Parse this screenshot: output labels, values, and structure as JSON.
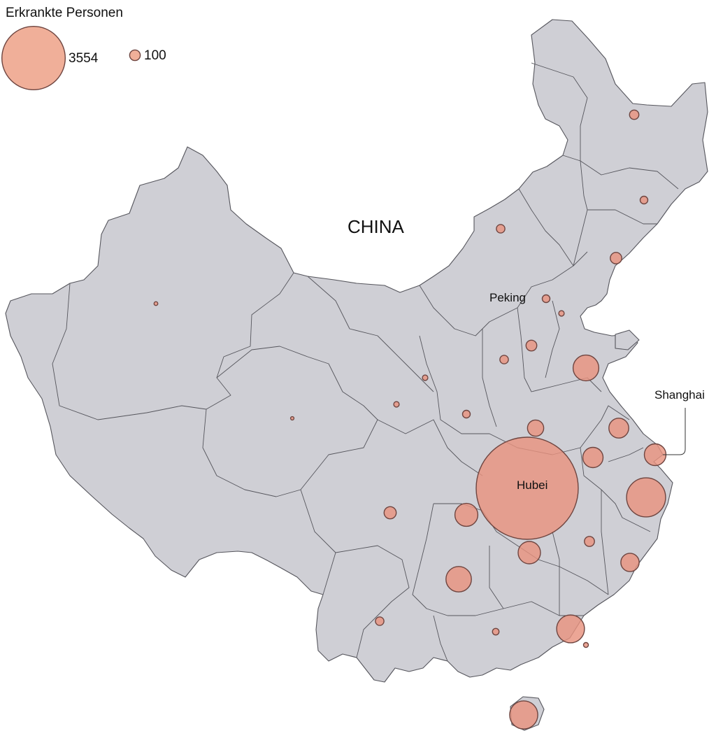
{
  "legend": {
    "title": "Erkrankte Personen",
    "max_value": 3554,
    "max_label": "3554",
    "min_value": 100,
    "min_label": "100"
  },
  "labels": {
    "country": "CHINA",
    "capital": "Peking",
    "city": "Shanghai",
    "epicenter": "Hubei"
  },
  "colors": {
    "land": "#cfcfd5",
    "border": "#55555c",
    "bubble_fill": "#e8937f",
    "bubble_stroke": "#6e4540"
  },
  "regions": [
    {
      "value": 3554
    },
    {
      "value": 30
    },
    {
      "value": 20
    },
    {
      "value": 45
    },
    {
      "value": 25
    },
    {
      "value": 20
    },
    {
      "value": 10
    },
    {
      "value": 225
    },
    {
      "value": 40
    },
    {
      "value": 135
    },
    {
      "value": 25
    },
    {
      "value": 10
    },
    {
      "value": 4
    },
    {
      "value": 10
    },
    {
      "value": 5
    },
    {
      "value": 20
    },
    {
      "value": 90
    },
    {
      "value": 140
    },
    {
      "value": 160
    },
    {
      "value": 520
    },
    {
      "value": 180
    },
    {
      "value": 50
    },
    {
      "value": 35
    },
    {
      "value": 170
    },
    {
      "value": 115
    },
    {
      "value": 265
    },
    {
      "value": 220
    },
    {
      "value": 8
    },
    {
      "value": 25
    },
    {
      "value": 15
    },
    {
      "value": 270
    },
    {
      "value": 10
    },
    {
      "value": 25
    }
  ]
}
